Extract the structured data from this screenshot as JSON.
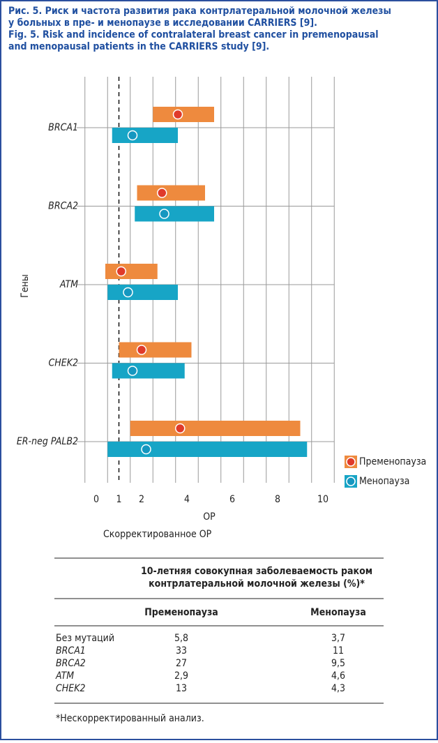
{
  "caption": [
    "Рис. 5. Риск и частота развития рака контрлатеральной молочной железы",
    "у больных в пре- и менопаузе в исследовании CARRIERS [9].",
    "Fig. 5. Risk and incidence of contralateral breast cancer in premenopausal",
    "and menopausal patients in the CARRIERS study [9]."
  ],
  "chart_data": {
    "type": "interval",
    "ylabel": "Гены",
    "xlabel": "ОР",
    "xlabel2": "Скорректированное ОР",
    "categories": [
      "BRCA1",
      "BRCA2",
      "ATM",
      "CHEK2",
      "ER-neg PALB2"
    ],
    "series": [
      {
        "name": "Пременопауза",
        "color": "#ee8a3e",
        "point_color": "#e03a2a",
        "values": [
          3.6,
          2.9,
          1.1,
          2.0,
          3.7
        ],
        "low": [
          2.5,
          1.8,
          0.4,
          1.0,
          1.5
        ],
        "high": [
          5.2,
          4.8,
          2.7,
          4.2,
          9.0
        ]
      },
      {
        "name": "Менопауза",
        "color": "#17a5c6",
        "point_color": "#1597c0",
        "values": [
          1.6,
          3.0,
          1.4,
          1.6,
          2.2
        ],
        "low": [
          0.7,
          1.7,
          0.5,
          0.7,
          0.5
        ],
        "high": [
          3.6,
          5.2,
          3.6,
          3.9,
          9.3
        ]
      }
    ],
    "xlim": [
      -0.5,
      10.5
    ],
    "xticks": [
      0,
      1,
      2,
      4,
      6,
      8,
      10
    ],
    "reference_line": 1,
    "grid": true,
    "legend": "lower right"
  },
  "table": {
    "title": [
      "10-летняя совокупная заболеваемость раком",
      "контрлатеральной молочной железы (%)*"
    ],
    "columns": [
      "Пременопауза",
      "Менопауза"
    ],
    "rows": [
      [
        "Без мутаций",
        "5,8",
        "3,7"
      ],
      [
        "BRCA1",
        "33",
        "11"
      ],
      [
        "BRCA2",
        "27",
        "9,5"
      ],
      [
        "ATM",
        "2,9",
        "4,6"
      ],
      [
        "CHEK2",
        "13",
        "4,3"
      ]
    ]
  },
  "footnote": "*Нескорректированный анализ."
}
